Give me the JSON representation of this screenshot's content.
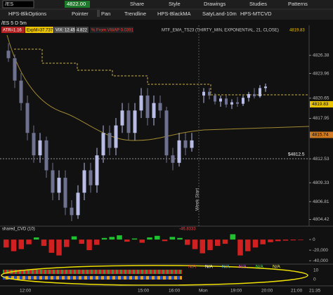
{
  "toolbar": {
    "symbol": "/ES",
    "price": "4822.00",
    "actions": [
      "Share",
      "Style",
      "Drawings",
      "Studies",
      "Patterns"
    ],
    "tools": [
      "HPS-BlkOptions",
      "Pointer",
      "Pan",
      "Trendline",
      "HPS-BlackMA",
      "SatyLand-10m",
      "HPS-MTCVD"
    ]
  },
  "chart_title": "/ES 5 D 5m",
  "info_labels": {
    "atr": "ATR=1.16",
    "expm": "ExpM=37.737",
    "vix": "VIX: 12.45",
    "value": "4.822",
    "vwap": "% From VWAP 0.0391",
    "mtf": "MTF_EMA_TS23 (THIRTY_MIN, EXPONENTIAL, 21, CLOSE)",
    "mtf_value": "4819.83"
  },
  "price_chart": {
    "ylim": [
      4803.9,
      4830.4
    ],
    "yticks": [
      4826.38,
      4823.96,
      4820.65,
      4817.95,
      4812.53,
      4809.33,
      4806.81,
      4804.42
    ],
    "last_price": 4819.83,
    "ma_price": 4815.74,
    "line_label": "$4812.5",
    "week_label": "Week Start",
    "up_color": "#b9bde6",
    "down_color": "#6e7290",
    "session1": [
      [
        4827,
        4828,
        4825.5,
        4826
      ],
      [
        4826,
        4826.5,
        4822,
        4823
      ],
      [
        4823,
        4824,
        4819,
        4820
      ],
      [
        4820,
        4821,
        4815,
        4816
      ],
      [
        4816,
        4817,
        4812,
        4813
      ],
      [
        4813,
        4816,
        4812,
        4815
      ],
      [
        4815,
        4815.5,
        4810,
        4811
      ],
      [
        4811,
        4812,
        4807,
        4808
      ],
      [
        4808,
        4811,
        4807,
        4810
      ],
      [
        4810,
        4811,
        4805,
        4806
      ],
      [
        4806,
        4807,
        4804.2,
        4805
      ],
      [
        4805,
        4809,
        4804.5,
        4808
      ],
      [
        4808,
        4812,
        4807,
        4811
      ],
      [
        4811,
        4812,
        4808,
        4809
      ],
      [
        4809,
        4814,
        4808,
        4813
      ],
      [
        4813,
        4817,
        4812,
        4816
      ],
      [
        4816,
        4817,
        4813,
        4814
      ],
      [
        4814,
        4818,
        4813,
        4817
      ],
      [
        4817,
        4820,
        4816,
        4819
      ],
      [
        4819,
        4820,
        4815,
        4816
      ],
      [
        4816,
        4820,
        4815,
        4819
      ],
      [
        4819,
        4822,
        4818,
        4821
      ],
      [
        4821,
        4822,
        4817,
        4818
      ],
      [
        4818,
        4821,
        4817,
        4820
      ],
      [
        4820,
        4821,
        4818,
        4819
      ],
      [
        4819,
        4819.5,
        4812,
        4813
      ],
      [
        4813,
        4814,
        4811,
        4812
      ],
      [
        4812,
        4816,
        4811.5,
        4815
      ],
      [
        4815,
        4816,
        4813,
        4814
      ],
      [
        4814,
        4816,
        4813.5,
        4815
      ]
    ],
    "session2": [
      [
        4821,
        4822,
        4820,
        4821.5
      ],
      [
        4821.5,
        4822,
        4820.5,
        4821
      ],
      [
        4821,
        4821.3,
        4819.8,
        4820.2
      ],
      [
        4820.2,
        4821,
        4819.5,
        4820.6
      ],
      [
        4820.6,
        4821,
        4819.4,
        4819.8
      ],
      [
        4819.8,
        4820.5,
        4819.2,
        4820.1
      ],
      [
        4820.1,
        4820.8,
        4819.5,
        4819.9
      ],
      [
        4819.9,
        4821,
        4819.6,
        4820.7
      ],
      [
        4820.7,
        4821.5,
        4820.2,
        4821.2
      ],
      [
        4821.2,
        4822,
        4820.6,
        4820.9
      ],
      [
        4820.9,
        4822.4,
        4820.7,
        4822
      ],
      [
        4822,
        4822.6,
        4821.5,
        4822.2
      ]
    ]
  },
  "cvd": {
    "title": "shared_CVD (10)",
    "last": "-46.8333",
    "ylim": [
      -45000,
      12000
    ],
    "yticks": [
      0,
      {
        "value": -20000,
        "label": "-20,000"
      },
      {
        "value": -40000,
        "label": "-40,000"
      }
    ],
    "values": [
      -15000,
      -22000,
      -18000,
      -9000,
      4000,
      -12000,
      -25000,
      -30000,
      -14000,
      6000,
      -8000,
      -20000,
      -10000,
      3000,
      5000,
      8000,
      -4000,
      2000,
      -6000,
      4000,
      7000,
      -3000,
      5000,
      3000,
      -10000,
      -18000,
      -26000,
      -20000,
      -12000,
      -8000,
      10000,
      -30000,
      -22000,
      -15000,
      -9000,
      -5000,
      -3000,
      -2000,
      -1500,
      -1000
    ]
  },
  "lower": {
    "na_labels": [
      "N/A",
      "N/A",
      "N/A",
      "N/A",
      "N/A",
      "N/A"
    ],
    "yticks": [
      "10",
      "0"
    ]
  },
  "time_labels": [
    "12:00",
    "15:00",
    "16:00",
    "Mon",
    "19:00",
    "20:00",
    "21:00",
    "21:35"
  ]
}
